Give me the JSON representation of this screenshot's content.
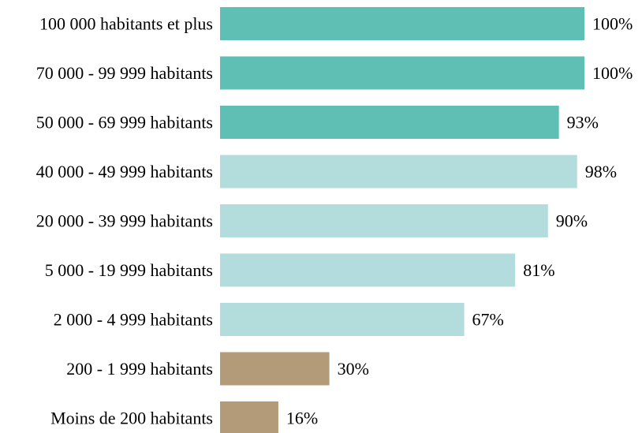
{
  "chart_data": {
    "type": "bar",
    "orientation": "horizontal",
    "categories": [
      "100 000 habitants et plus",
      "70 000 - 99 999 habitants",
      "50 000 - 69 999 habitants",
      "40 000 - 49 999 habitants",
      "20 000 - 39 999 habitants",
      "5 000 - 19 999 habitants",
      "2 000 - 4 999 habitants",
      "200 - 1 999 habitants",
      "Moins de 200 habitants"
    ],
    "values": [
      100,
      100,
      93,
      98,
      90,
      81,
      67,
      30,
      16
    ],
    "value_labels": [
      "100%",
      "100%",
      "93%",
      "98%",
      "90%",
      "81%",
      "67%",
      "30%",
      "16%"
    ],
    "bar_colors": [
      "#5fbfb5",
      "#5fbfb5",
      "#5fbfb5",
      "#b3dddd",
      "#b3dddd",
      "#b3dddd",
      "#b3dddd",
      "#b39a78",
      "#b39a78"
    ],
    "xlim": [
      0,
      100
    ],
    "grid": false,
    "legend": "none"
  }
}
